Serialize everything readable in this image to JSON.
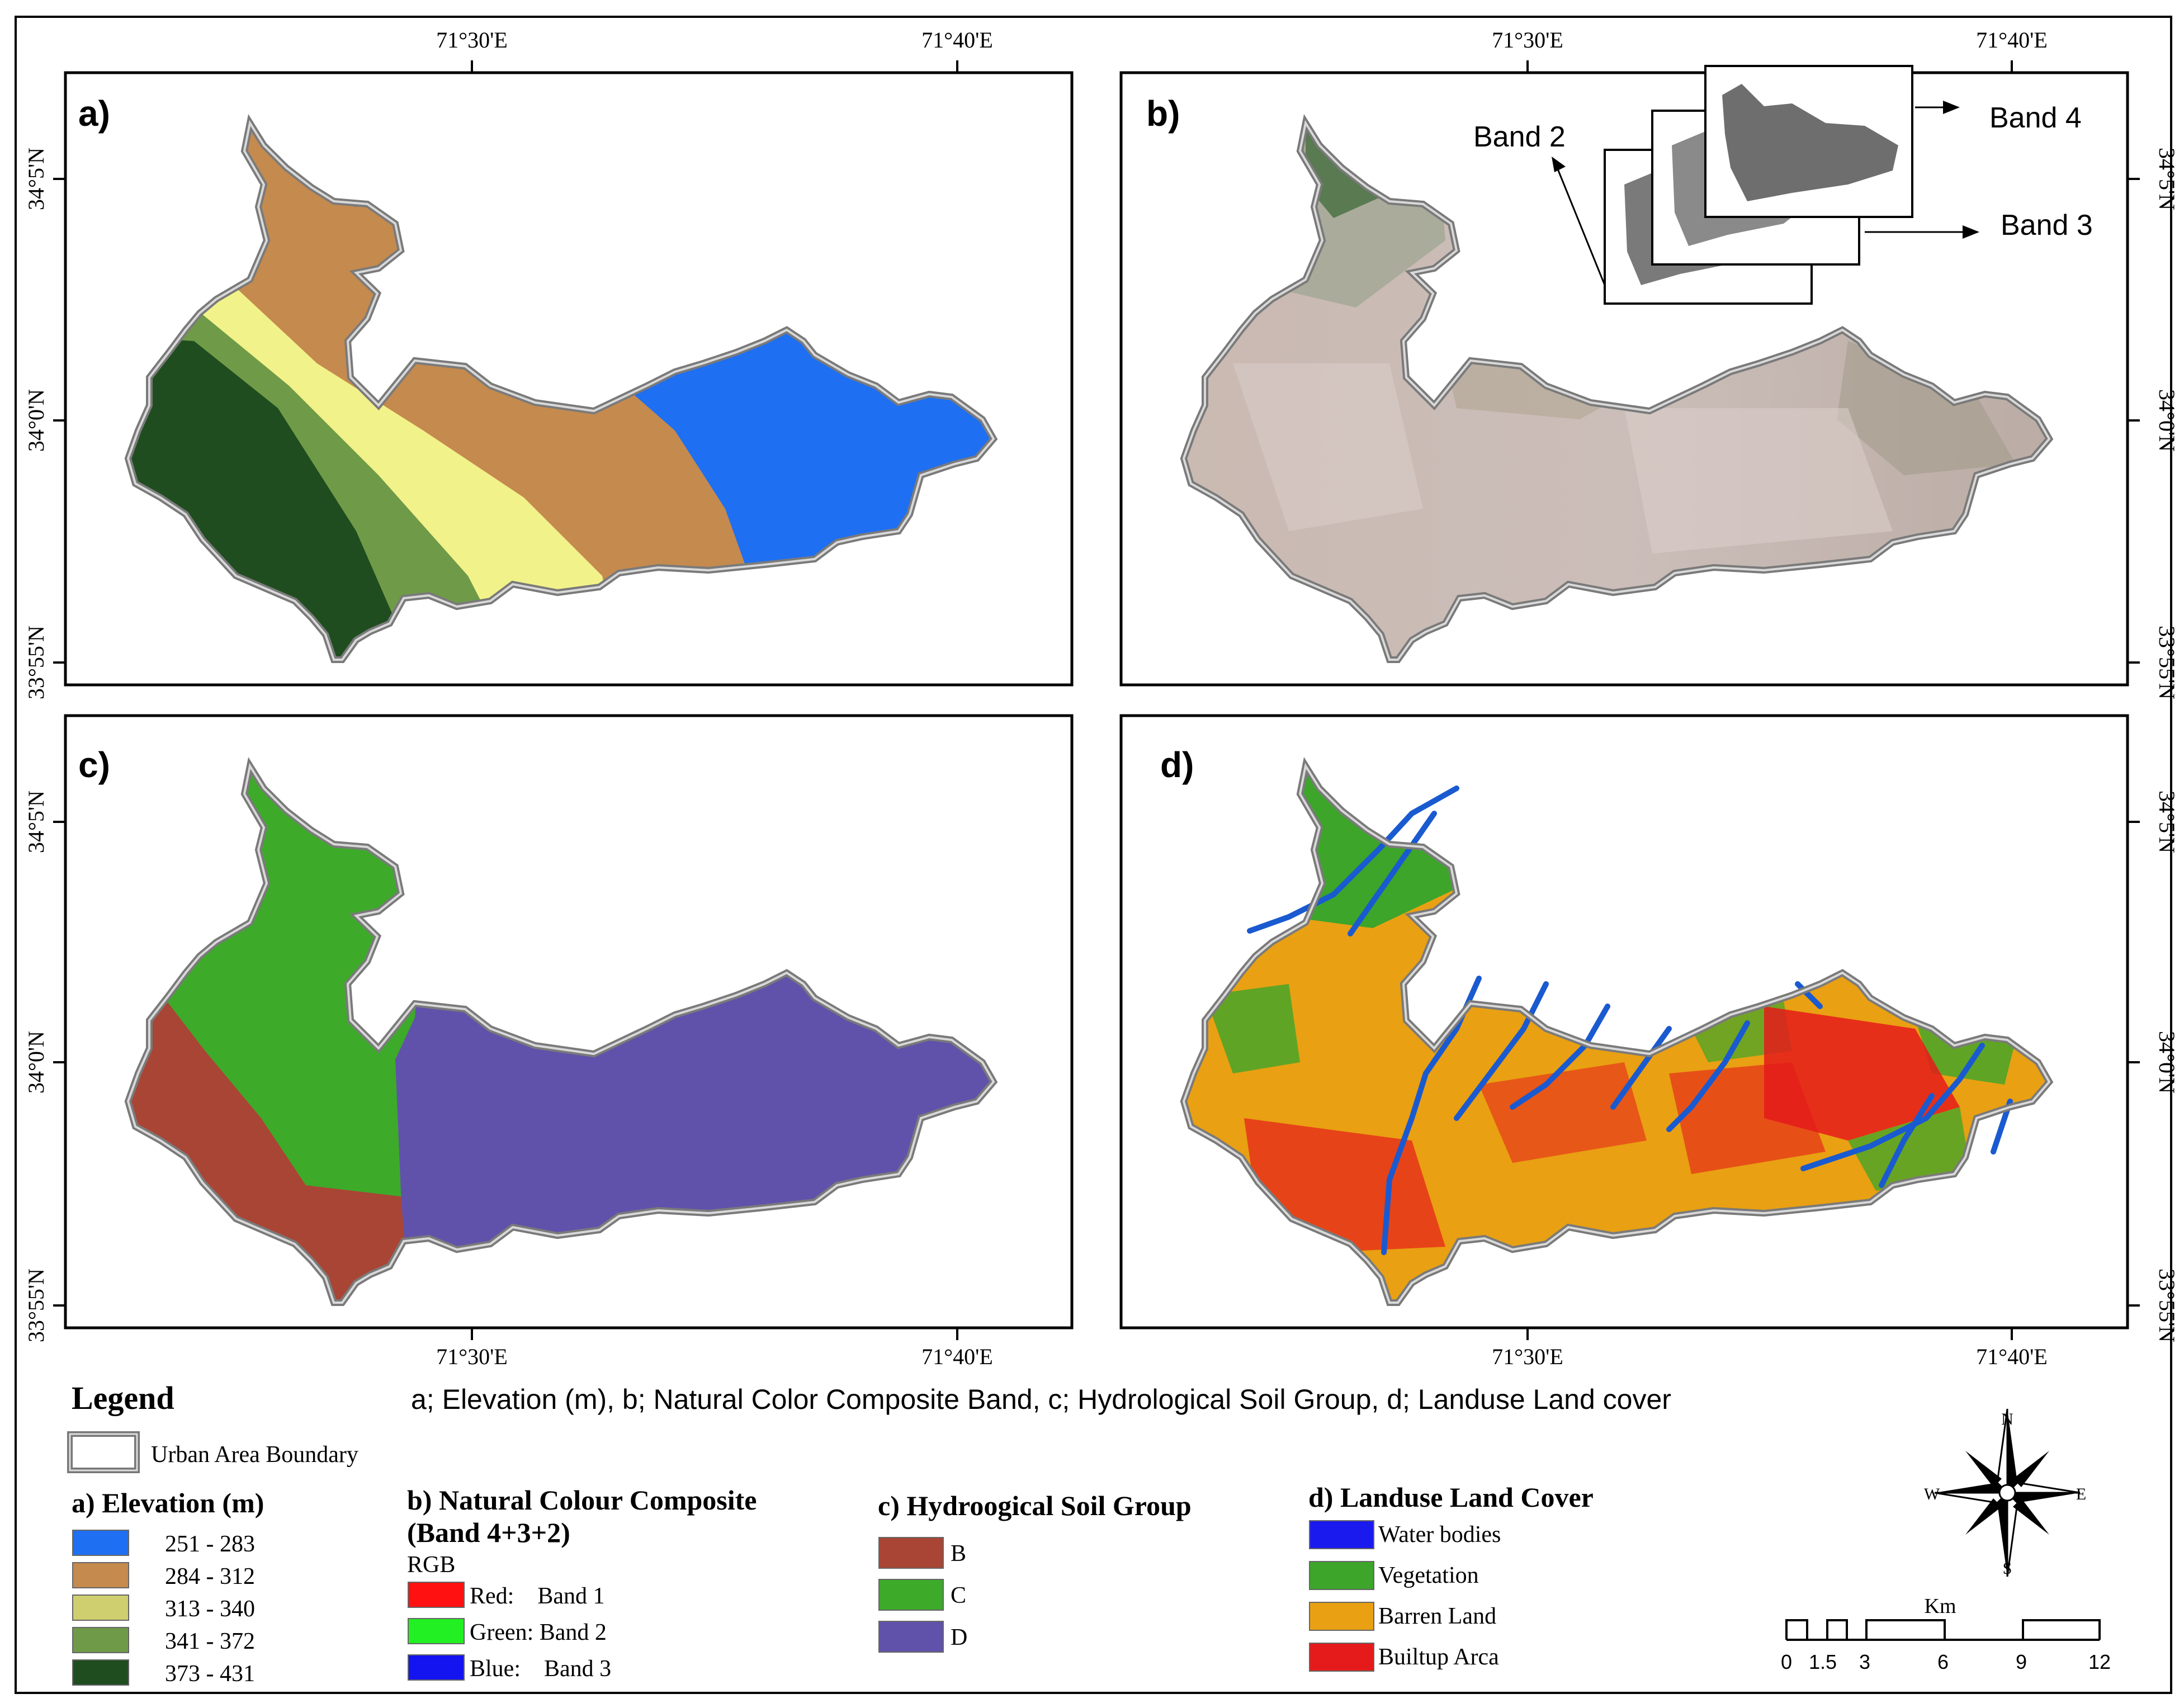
{
  "panels": {
    "a": {
      "letter": "a)"
    },
    "b": {
      "letter": "b)",
      "band2": "Band 2",
      "band3": "Band 3",
      "band4": "Band 4"
    },
    "c": {
      "letter": "c)"
    },
    "d": {
      "letter": "d)"
    }
  },
  "axes": {
    "lon_30": "71°30'E",
    "lon_40": "71°40'E",
    "lat_5": "34°5'N",
    "lat_0": "34°0'N",
    "lat_55": "33°55'N"
  },
  "legend": {
    "title": "Legend",
    "caption": "a; Elevation (m), b; Natural Color Composite Band, c; Hydrological Soil Group, d; Landuse Land cover",
    "boundary_label": "Urban Area Boundary",
    "elevation": {
      "title": "a) Elevation (m)",
      "items": [
        {
          "label": "251 - 283",
          "color": "#1e6ff2"
        },
        {
          "label": "284 - 312",
          "color": "#c58a4e"
        },
        {
          "label": "313 - 340",
          "color": "#cfcf70"
        },
        {
          "label": "341 - 372",
          "color": "#6f9a48"
        },
        {
          "label": "373 - 431",
          "color": "#1f4d1f"
        }
      ]
    },
    "composite": {
      "title1": "b) Natural Colour Composite",
      "title2": "(Band 4+3+2)",
      "sub": "RGB",
      "items": [
        {
          "label": "Red:    Band 1",
          "color": "#ff1111"
        },
        {
          "label": "Green: Band 2",
          "color": "#22f022"
        },
        {
          "label": "Blue:    Band 3",
          "color": "#1414f0"
        }
      ]
    },
    "soil": {
      "title": "c) Hydroogical Soil Group",
      "items": [
        {
          "label": "B",
          "color": "#a94535"
        },
        {
          "label": "C",
          "color": "#3daa2a"
        },
        {
          "label": "D",
          "color": "#6052ab"
        }
      ]
    },
    "landuse": {
      "title": "d) Landuse Land Cover",
      "items": [
        {
          "label": "Water bodies",
          "color": "#1a1aef"
        },
        {
          "label": "Vegetation",
          "color": "#3ca52a"
        },
        {
          "label": "Barren Land",
          "color": "#e9a012"
        },
        {
          "label": "Builtup Arca",
          "color": "#e51b1b"
        }
      ]
    },
    "compass": {
      "n": "N",
      "s": "S",
      "e": "E",
      "w": "W"
    },
    "scalebar": {
      "unit": "Km",
      "ticks": [
        "0",
        "1.5",
        "3",
        "6",
        "9",
        "12"
      ]
    }
  }
}
